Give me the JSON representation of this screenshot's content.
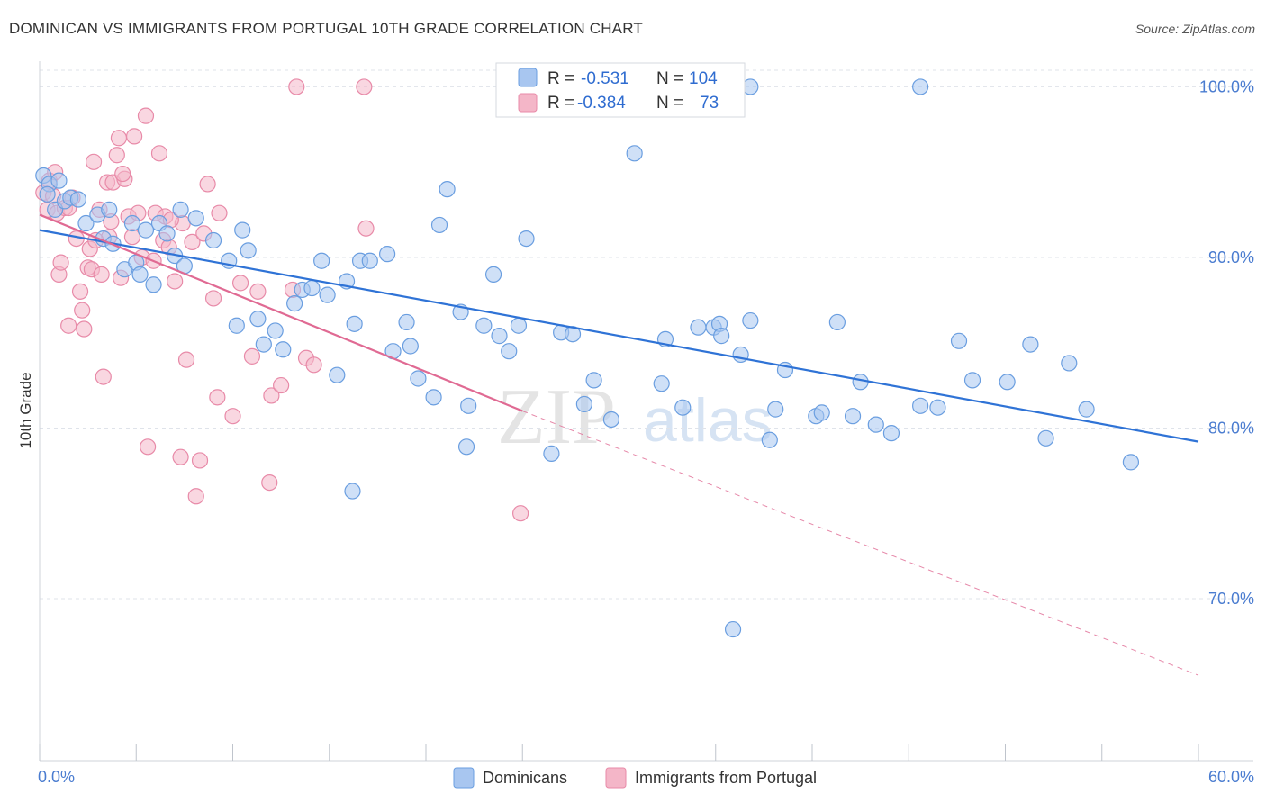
{
  "title": "DOMINICAN VS IMMIGRANTS FROM PORTUGAL 10TH GRADE CORRELATION CHART",
  "source": "Source: ZipAtlas.com",
  "watermark": {
    "zip": "ZIP",
    "atlas": "atlas"
  },
  "colors": {
    "blue_fill": "#a8c6f0",
    "blue_stroke": "#6a9ee0",
    "blue_line": "#2f73d6",
    "pink_fill": "#f4b6c8",
    "pink_stroke": "#e88aa8",
    "pink_line": "#e06a93",
    "grid": "#dfe3ea",
    "tick_text": "#4a7cd0"
  },
  "legend": {
    "rows": [
      {
        "r_label": "R =",
        "r_value": "-0.531",
        "n_label": "N =",
        "n_value": "104"
      },
      {
        "r_label": "R =",
        "r_value": "-0.384",
        "n_label": "N =",
        "n_value": "73"
      }
    ]
  },
  "chart_data": {
    "type": "scatter",
    "title": "DOMINICAN VS IMMIGRANTS FROM PORTUGAL 10TH GRADE CORRELATION CHART",
    "xlabel": "",
    "ylabel": "10th Grade",
    "xlim": [
      0,
      60
    ],
    "ylim": [
      60.5,
      101.5
    ],
    "x_tick_labels": [
      "0.0%",
      "60.0%"
    ],
    "y_ticks": [
      70,
      80,
      90,
      100
    ],
    "y_tick_labels": [
      "70.0%",
      "80.0%",
      "90.0%",
      "100.0%"
    ],
    "grid": true,
    "legend_position": "bottom",
    "series": [
      {
        "name": "Dominicans",
        "color": "#a8c6f0",
        "trend": {
          "x": [
            0,
            60
          ],
          "y": [
            91.6,
            79.2
          ],
          "dashed_extension": false
        },
        "points": [
          [
            0.2,
            94.8
          ],
          [
            0.5,
            94.3
          ],
          [
            0.8,
            92.8
          ],
          [
            1.0,
            94.5
          ],
          [
            1.3,
            93.3
          ],
          [
            1.6,
            93.5
          ],
          [
            2.0,
            93.4
          ],
          [
            2.4,
            92.0
          ],
          [
            3.0,
            92.5
          ],
          [
            3.3,
            91.1
          ],
          [
            3.6,
            92.8
          ],
          [
            3.8,
            90.8
          ],
          [
            4.4,
            89.3
          ],
          [
            4.8,
            92.0
          ],
          [
            5.0,
            89.7
          ],
          [
            5.2,
            89.0
          ],
          [
            5.5,
            91.6
          ],
          [
            5.9,
            88.4
          ],
          [
            6.2,
            92.0
          ],
          [
            6.6,
            91.4
          ],
          [
            7.0,
            90.1
          ],
          [
            7.3,
            92.8
          ],
          [
            7.5,
            89.5
          ],
          [
            8.1,
            92.3
          ],
          [
            9.0,
            91.0
          ],
          [
            9.8,
            89.8
          ],
          [
            10.2,
            86.0
          ],
          [
            10.5,
            91.6
          ],
          [
            10.8,
            90.4
          ],
          [
            11.3,
            86.4
          ],
          [
            11.6,
            84.9
          ],
          [
            12.2,
            85.7
          ],
          [
            12.6,
            84.6
          ],
          [
            13.2,
            87.3
          ],
          [
            13.6,
            88.1
          ],
          [
            14.1,
            88.2
          ],
          [
            14.6,
            89.8
          ],
          [
            14.9,
            87.8
          ],
          [
            15.4,
            83.1
          ],
          [
            15.9,
            88.6
          ],
          [
            16.3,
            86.1
          ],
          [
            16.6,
            89.8
          ],
          [
            17.1,
            89.8
          ],
          [
            18.0,
            90.2
          ],
          [
            18.3,
            84.5
          ],
          [
            19.0,
            86.2
          ],
          [
            19.2,
            84.8
          ],
          [
            19.6,
            82.9
          ],
          [
            20.4,
            81.8
          ],
          [
            20.7,
            91.9
          ],
          [
            21.1,
            94.0
          ],
          [
            21.8,
            86.8
          ],
          [
            22.2,
            81.3
          ],
          [
            23.0,
            86.0
          ],
          [
            23.5,
            89.0
          ],
          [
            23.8,
            85.4
          ],
          [
            24.3,
            84.5
          ],
          [
            24.8,
            86.0
          ],
          [
            25.2,
            91.1
          ],
          [
            26.5,
            78.5
          ],
          [
            27.0,
            85.6
          ],
          [
            27.6,
            85.5
          ],
          [
            28.2,
            81.4
          ],
          [
            28.7,
            82.8
          ],
          [
            29.6,
            80.5
          ],
          [
            30.8,
            96.1
          ],
          [
            32.2,
            82.6
          ],
          [
            32.4,
            85.2
          ],
          [
            33.3,
            81.2
          ],
          [
            34.1,
            85.9
          ],
          [
            34.9,
            85.9
          ],
          [
            35.2,
            86.1
          ],
          [
            35.3,
            85.4
          ],
          [
            35.9,
            68.2
          ],
          [
            36.3,
            84.3
          ],
          [
            36.8,
            86.3
          ],
          [
            37.8,
            79.3
          ],
          [
            38.1,
            81.1
          ],
          [
            38.6,
            83.4
          ],
          [
            40.2,
            80.7
          ],
          [
            40.5,
            80.9
          ],
          [
            41.3,
            86.2
          ],
          [
            42.1,
            80.7
          ],
          [
            42.5,
            82.7
          ],
          [
            43.3,
            80.2
          ],
          [
            44.1,
            79.7
          ],
          [
            45.6,
            81.3
          ],
          [
            46.5,
            81.2
          ],
          [
            47.6,
            85.1
          ],
          [
            48.3,
            82.8
          ],
          [
            50.1,
            82.7
          ],
          [
            51.3,
            84.9
          ],
          [
            52.1,
            79.4
          ],
          [
            53.3,
            83.8
          ],
          [
            54.2,
            81.1
          ],
          [
            56.5,
            78.0
          ],
          [
            22.1,
            78.9
          ],
          [
            16.2,
            76.3
          ],
          [
            25.3,
            100.0
          ],
          [
            26.5,
            100.0
          ],
          [
            30.0,
            100.0
          ],
          [
            45.6,
            100.0
          ],
          [
            36.8,
            100.0
          ],
          [
            0.4,
            93.7
          ]
        ]
      },
      {
        "name": "Immigrants from Portugal",
        "color": "#f4b6c8",
        "trend": {
          "x": [
            0,
            25
          ],
          "y": [
            92.5,
            81.0
          ],
          "dashed_to": [
            60,
            65.5
          ]
        },
        "points": [
          [
            0.2,
            93.8
          ],
          [
            0.4,
            92.8
          ],
          [
            0.5,
            94.5
          ],
          [
            0.7,
            93.6
          ],
          [
            0.9,
            92.6
          ],
          [
            1.0,
            89.0
          ],
          [
            1.1,
            89.7
          ],
          [
            1.3,
            92.9
          ],
          [
            1.5,
            86.0
          ],
          [
            1.7,
            93.5
          ],
          [
            1.9,
            91.1
          ],
          [
            2.1,
            88.0
          ],
          [
            2.2,
            86.9
          ],
          [
            2.3,
            85.8
          ],
          [
            2.5,
            89.4
          ],
          [
            2.6,
            90.5
          ],
          [
            2.7,
            89.3
          ],
          [
            2.8,
            95.6
          ],
          [
            3.1,
            92.8
          ],
          [
            3.2,
            89.0
          ],
          [
            3.3,
            83.0
          ],
          [
            3.5,
            94.4
          ],
          [
            3.6,
            91.2
          ],
          [
            3.7,
            92.1
          ],
          [
            3.8,
            94.4
          ],
          [
            4.0,
            96.0
          ],
          [
            4.1,
            97.0
          ],
          [
            4.2,
            88.8
          ],
          [
            4.4,
            94.6
          ],
          [
            4.6,
            92.4
          ],
          [
            4.8,
            91.2
          ],
          [
            4.9,
            97.1
          ],
          [
            5.1,
            92.6
          ],
          [
            5.3,
            90.0
          ],
          [
            5.5,
            98.3
          ],
          [
            5.6,
            78.9
          ],
          [
            5.9,
            89.8
          ],
          [
            6.0,
            92.6
          ],
          [
            6.2,
            96.1
          ],
          [
            6.4,
            91.0
          ],
          [
            6.5,
            92.4
          ],
          [
            6.7,
            90.6
          ],
          [
            7.0,
            88.6
          ],
          [
            7.3,
            78.3
          ],
          [
            7.4,
            92.0
          ],
          [
            7.6,
            84.0
          ],
          [
            7.9,
            90.9
          ],
          [
            8.1,
            76.0
          ],
          [
            8.3,
            78.1
          ],
          [
            8.5,
            91.4
          ],
          [
            8.7,
            94.3
          ],
          [
            9.0,
            87.6
          ],
          [
            9.2,
            81.8
          ],
          [
            10.0,
            80.7
          ],
          [
            10.4,
            88.5
          ],
          [
            11.0,
            84.2
          ],
          [
            11.3,
            88.0
          ],
          [
            11.9,
            76.8
          ],
          [
            12.0,
            81.9
          ],
          [
            12.5,
            82.5
          ],
          [
            13.1,
            88.1
          ],
          [
            13.8,
            84.1
          ],
          [
            14.2,
            83.7
          ],
          [
            13.3,
            100.0
          ],
          [
            16.8,
            100.0
          ],
          [
            16.9,
            91.7
          ],
          [
            24.9,
            75.0
          ],
          [
            0.8,
            95.0
          ],
          [
            1.5,
            92.9
          ],
          [
            2.9,
            91.0
          ],
          [
            4.3,
            94.9
          ],
          [
            6.8,
            92.2
          ],
          [
            9.3,
            92.6
          ]
        ]
      }
    ]
  }
}
